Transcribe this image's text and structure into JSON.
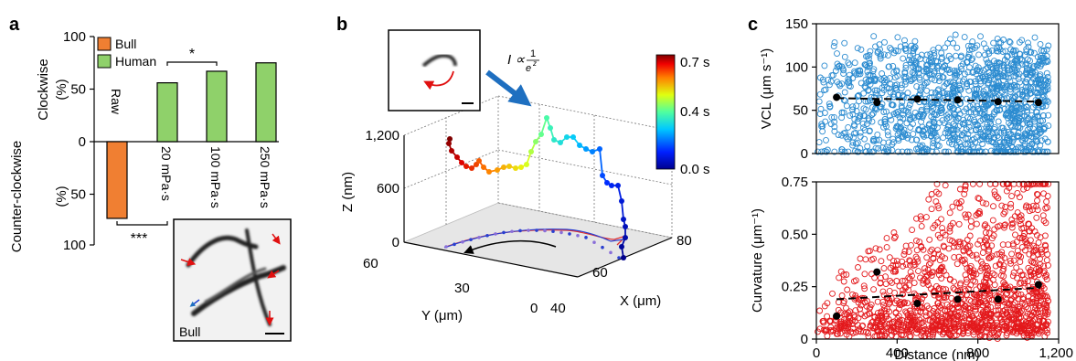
{
  "figure": {
    "panel_labels": [
      "a",
      "b",
      "c"
    ]
  },
  "panel_a": {
    "legend": [
      "Bull",
      "Human"
    ],
    "legend_colors": [
      "#f07f32",
      "#8fd16a"
    ],
    "ylabel_top": [
      "Clockwise",
      "(%)"
    ],
    "ylabel_bottom": [
      "Counter-clockwise",
      "(%)"
    ],
    "significance": [
      "*",
      "***"
    ],
    "inset_label": "Bull",
    "chart_data": {
      "type": "bar",
      "categories": [
        "Raw",
        "20 mPa·s",
        "100 mPa·s",
        "250 mPa·s"
      ],
      "series": [
        {
          "name": "Bull",
          "values": [
            -73,
            null,
            null,
            null
          ]
        },
        {
          "name": "Human",
          "values": [
            null,
            56,
            67,
            75
          ]
        }
      ],
      "yticks": [
        100,
        50,
        0,
        50,
        100
      ],
      "ylim": [
        -100,
        100
      ]
    }
  },
  "panel_b": {
    "zlabel": "Z (nm)",
    "xlabel": "X (μm)",
    "ylabel": "Y (μm)",
    "z_ticks": [
      "1,200",
      "600",
      "0"
    ],
    "x_ticks": [
      "80",
      "60",
      "40"
    ],
    "y_ticks": [
      "60",
      "30",
      "0"
    ],
    "colorbar_ticks": [
      "0.7 s",
      "0.4 s",
      "0.0 s"
    ],
    "intensity_formula": {
      "lhs": "I ∝",
      "num": "1",
      "den": "e",
      "exp": "z"
    },
    "chart_data": {
      "type": "line",
      "description_axes": {
        "x_range": [
          40,
          80
        ],
        "y_range": [
          0,
          60
        ],
        "z_range": [
          0,
          1200
        ]
      }
    }
  },
  "panel_c": {
    "top": {
      "ylabel": "VCL (μm s⁻¹)",
      "yticks": [
        "0",
        "50",
        "100",
        "150"
      ],
      "color": "#2b8bd0"
    },
    "bottom": {
      "ylabel": "Curvature (μm⁻¹)",
      "yticks": [
        "0",
        "0.25",
        "0.50",
        "0.75"
      ],
      "xticks": [
        "0",
        "400",
        "800",
        "1,200"
      ],
      "xlabel": "Distance (nm)",
      "color": "#e3191c"
    },
    "chart_data": [
      {
        "type": "scatter",
        "ylabel": "VCL (μm s⁻¹)",
        "xlim": [
          0,
          1200
        ],
        "ylim": [
          0,
          150
        ],
        "trend_points": {
          "x": [
            100,
            300,
            500,
            700,
            900,
            1100
          ],
          "y": [
            65,
            59,
            63,
            62,
            60,
            59
          ]
        }
      },
      {
        "type": "scatter",
        "ylabel": "Curvature (μm⁻¹)",
        "xlabel": "Distance (nm)",
        "xlim": [
          0,
          1200
        ],
        "ylim": [
          0,
          0.75
        ],
        "trend_points": {
          "x": [
            100,
            300,
            500,
            700,
            900,
            1100
          ],
          "y": [
            0.11,
            0.32,
            0.17,
            0.19,
            0.19,
            0.26
          ]
        }
      }
    ]
  }
}
